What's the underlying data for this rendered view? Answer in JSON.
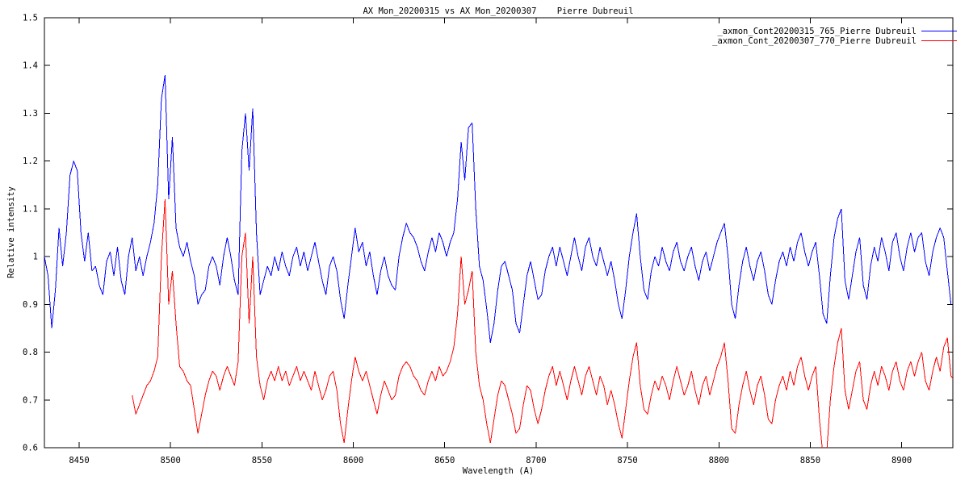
{
  "title": "AX Mon_20200315 vs AX Mon_20200307    Pierre Dubreuil",
  "colors": {
    "background": "#ffffff",
    "axis": "#000000",
    "series1": "#0000ff",
    "series2": "#ff0000"
  },
  "legend": {
    "entries": [
      {
        "label": "_axmon_Cont20200315_765_Pierre Dubreuil",
        "color": "#0000ff"
      },
      {
        "label": "_axmon_Cont_20200307_770_Pierre Dubreuil",
        "color": "#ff0000"
      }
    ]
  },
  "chart_data": {
    "type": "line",
    "title": "AX Mon_20200315 vs AX Mon_20200307    Pierre Dubreuil",
    "xlabel": "Wavelength (A)",
    "ylabel": "Relative intensity",
    "xlim": [
      8431,
      8928
    ],
    "ylim": [
      0.6,
      1.5
    ],
    "x_ticks": [
      8450,
      8500,
      8550,
      8600,
      8650,
      8700,
      8750,
      8800,
      8850,
      8900
    ],
    "y_ticks": [
      0.6,
      0.7,
      0.8,
      0.9,
      1,
      1.1,
      1.2,
      1.3,
      1.4,
      1.5
    ],
    "y_tick_labels": [
      "0.6",
      "0.7",
      "0.8",
      "0.9",
      "1",
      "1.1",
      "1.2",
      "1.3",
      "1.4",
      "1.5"
    ],
    "grid": false,
    "legend_position": "top-right",
    "series": [
      {
        "name": "_axmon_Cont20200315_765_Pierre Dubreuil",
        "color": "#0000ff",
        "x_start": 8431,
        "x_step": 2,
        "values": [
          1.0,
          0.96,
          0.85,
          0.93,
          1.06,
          0.98,
          1.05,
          1.17,
          1.2,
          1.18,
          1.05,
          0.99,
          1.05,
          0.97,
          0.98,
          0.94,
          0.92,
          0.99,
          1.01,
          0.96,
          1.02,
          0.95,
          0.92,
          1.0,
          1.04,
          0.97,
          1.0,
          0.96,
          1.0,
          1.03,
          1.07,
          1.15,
          1.33,
          1.38,
          1.12,
          1.25,
          1.06,
          1.02,
          1.0,
          1.03,
          0.99,
          0.96,
          0.9,
          0.92,
          0.93,
          0.98,
          1.0,
          0.98,
          0.94,
          1.0,
          1.04,
          1.0,
          0.95,
          0.92,
          1.22,
          1.3,
          1.18,
          1.31,
          1.05,
          0.92,
          0.95,
          0.98,
          0.96,
          1.0,
          0.97,
          1.01,
          0.98,
          0.96,
          1.0,
          1.02,
          0.98,
          1.01,
          0.97,
          1.0,
          1.03,
          0.99,
          0.95,
          0.92,
          0.98,
          1.0,
          0.97,
          0.91,
          0.87,
          0.94,
          1.0,
          1.06,
          1.01,
          1.03,
          0.98,
          1.01,
          0.96,
          0.92,
          0.97,
          1.0,
          0.96,
          0.94,
          0.93,
          1.0,
          1.04,
          1.07,
          1.05,
          1.04,
          1.02,
          0.99,
          0.97,
          1.01,
          1.04,
          1.01,
          1.05,
          1.03,
          1.0,
          1.03,
          1.05,
          1.12,
          1.24,
          1.16,
          1.27,
          1.28,
          1.1,
          0.98,
          0.95,
          0.89,
          0.82,
          0.86,
          0.93,
          0.98,
          0.99,
          0.96,
          0.93,
          0.86,
          0.84,
          0.9,
          0.96,
          0.99,
          0.95,
          0.91,
          0.92,
          0.97,
          1.0,
          1.02,
          0.98,
          1.02,
          0.99,
          0.96,
          1.0,
          1.04,
          1.0,
          0.97,
          1.02,
          1.04,
          1.0,
          0.98,
          1.02,
          0.99,
          0.96,
          0.99,
          0.95,
          0.9,
          0.87,
          0.93,
          1.0,
          1.05,
          1.09,
          1.0,
          0.93,
          0.91,
          0.97,
          1.0,
          0.98,
          1.02,
          0.99,
          0.97,
          1.01,
          1.03,
          0.99,
          0.97,
          1.0,
          1.02,
          0.98,
          0.95,
          0.99,
          1.01,
          0.97,
          1.0,
          1.03,
          1.05,
          1.07,
          1.0,
          0.9,
          0.87,
          0.94,
          0.99,
          1.02,
          0.98,
          0.95,
          0.99,
          1.01,
          0.97,
          0.92,
          0.9,
          0.95,
          0.99,
          1.01,
          0.98,
          1.02,
          0.99,
          1.03,
          1.05,
          1.01,
          0.98,
          1.01,
          1.03,
          0.96,
          0.88,
          0.86,
          0.96,
          1.04,
          1.08,
          1.1,
          0.95,
          0.91,
          0.96,
          1.01,
          1.04,
          0.94,
          0.91,
          0.98,
          1.02,
          0.99,
          1.04,
          1.01,
          0.97,
          1.03,
          1.05,
          1.0,
          0.97,
          1.02,
          1.05,
          1.01,
          1.04,
          1.05,
          0.99,
          0.96,
          1.01,
          1.04,
          1.06,
          1.04,
          0.97,
          0.9
        ]
      },
      {
        "name": "_axmon_Cont_20200307_770_Pierre Dubreuil",
        "color": "#ff0000",
        "x_start": 8479,
        "x_step": 2,
        "values": [
          0.71,
          0.67,
          0.69,
          0.71,
          0.73,
          0.74,
          0.76,
          0.79,
          1.0,
          1.12,
          0.9,
          0.97,
          0.86,
          0.77,
          0.76,
          0.74,
          0.73,
          0.68,
          0.63,
          0.67,
          0.71,
          0.74,
          0.76,
          0.75,
          0.72,
          0.75,
          0.77,
          0.75,
          0.73,
          0.78,
          1.0,
          1.05,
          0.86,
          1.0,
          0.79,
          0.73,
          0.7,
          0.74,
          0.76,
          0.74,
          0.77,
          0.74,
          0.76,
          0.73,
          0.75,
          0.77,
          0.74,
          0.76,
          0.74,
          0.72,
          0.76,
          0.73,
          0.7,
          0.72,
          0.75,
          0.76,
          0.72,
          0.65,
          0.61,
          0.68,
          0.74,
          0.79,
          0.76,
          0.74,
          0.76,
          0.73,
          0.7,
          0.67,
          0.71,
          0.74,
          0.72,
          0.7,
          0.71,
          0.75,
          0.77,
          0.78,
          0.77,
          0.75,
          0.74,
          0.72,
          0.71,
          0.74,
          0.76,
          0.74,
          0.77,
          0.75,
          0.76,
          0.78,
          0.81,
          0.88,
          1.0,
          0.9,
          0.93,
          0.97,
          0.8,
          0.73,
          0.7,
          0.65,
          0.61,
          0.66,
          0.71,
          0.74,
          0.73,
          0.7,
          0.67,
          0.63,
          0.64,
          0.69,
          0.73,
          0.72,
          0.68,
          0.65,
          0.68,
          0.72,
          0.75,
          0.77,
          0.73,
          0.76,
          0.73,
          0.7,
          0.74,
          0.77,
          0.74,
          0.71,
          0.75,
          0.77,
          0.74,
          0.71,
          0.75,
          0.73,
          0.69,
          0.72,
          0.69,
          0.65,
          0.62,
          0.68,
          0.74,
          0.79,
          0.82,
          0.73,
          0.68,
          0.67,
          0.71,
          0.74,
          0.72,
          0.75,
          0.73,
          0.7,
          0.74,
          0.77,
          0.74,
          0.71,
          0.73,
          0.76,
          0.72,
          0.69,
          0.73,
          0.75,
          0.71,
          0.74,
          0.77,
          0.79,
          0.82,
          0.74,
          0.64,
          0.63,
          0.69,
          0.73,
          0.76,
          0.72,
          0.69,
          0.73,
          0.75,
          0.71,
          0.66,
          0.65,
          0.7,
          0.73,
          0.75,
          0.72,
          0.76,
          0.73,
          0.77,
          0.79,
          0.75,
          0.72,
          0.75,
          0.77,
          0.66,
          0.58,
          0.59,
          0.7,
          0.77,
          0.82,
          0.85,
          0.72,
          0.68,
          0.72,
          0.76,
          0.78,
          0.7,
          0.68,
          0.73,
          0.76,
          0.73,
          0.77,
          0.75,
          0.72,
          0.76,
          0.78,
          0.74,
          0.72,
          0.76,
          0.78,
          0.75,
          0.78,
          0.8,
          0.74,
          0.72,
          0.76,
          0.79,
          0.76,
          0.81,
          0.83,
          0.75,
          0.74
        ]
      }
    ]
  }
}
